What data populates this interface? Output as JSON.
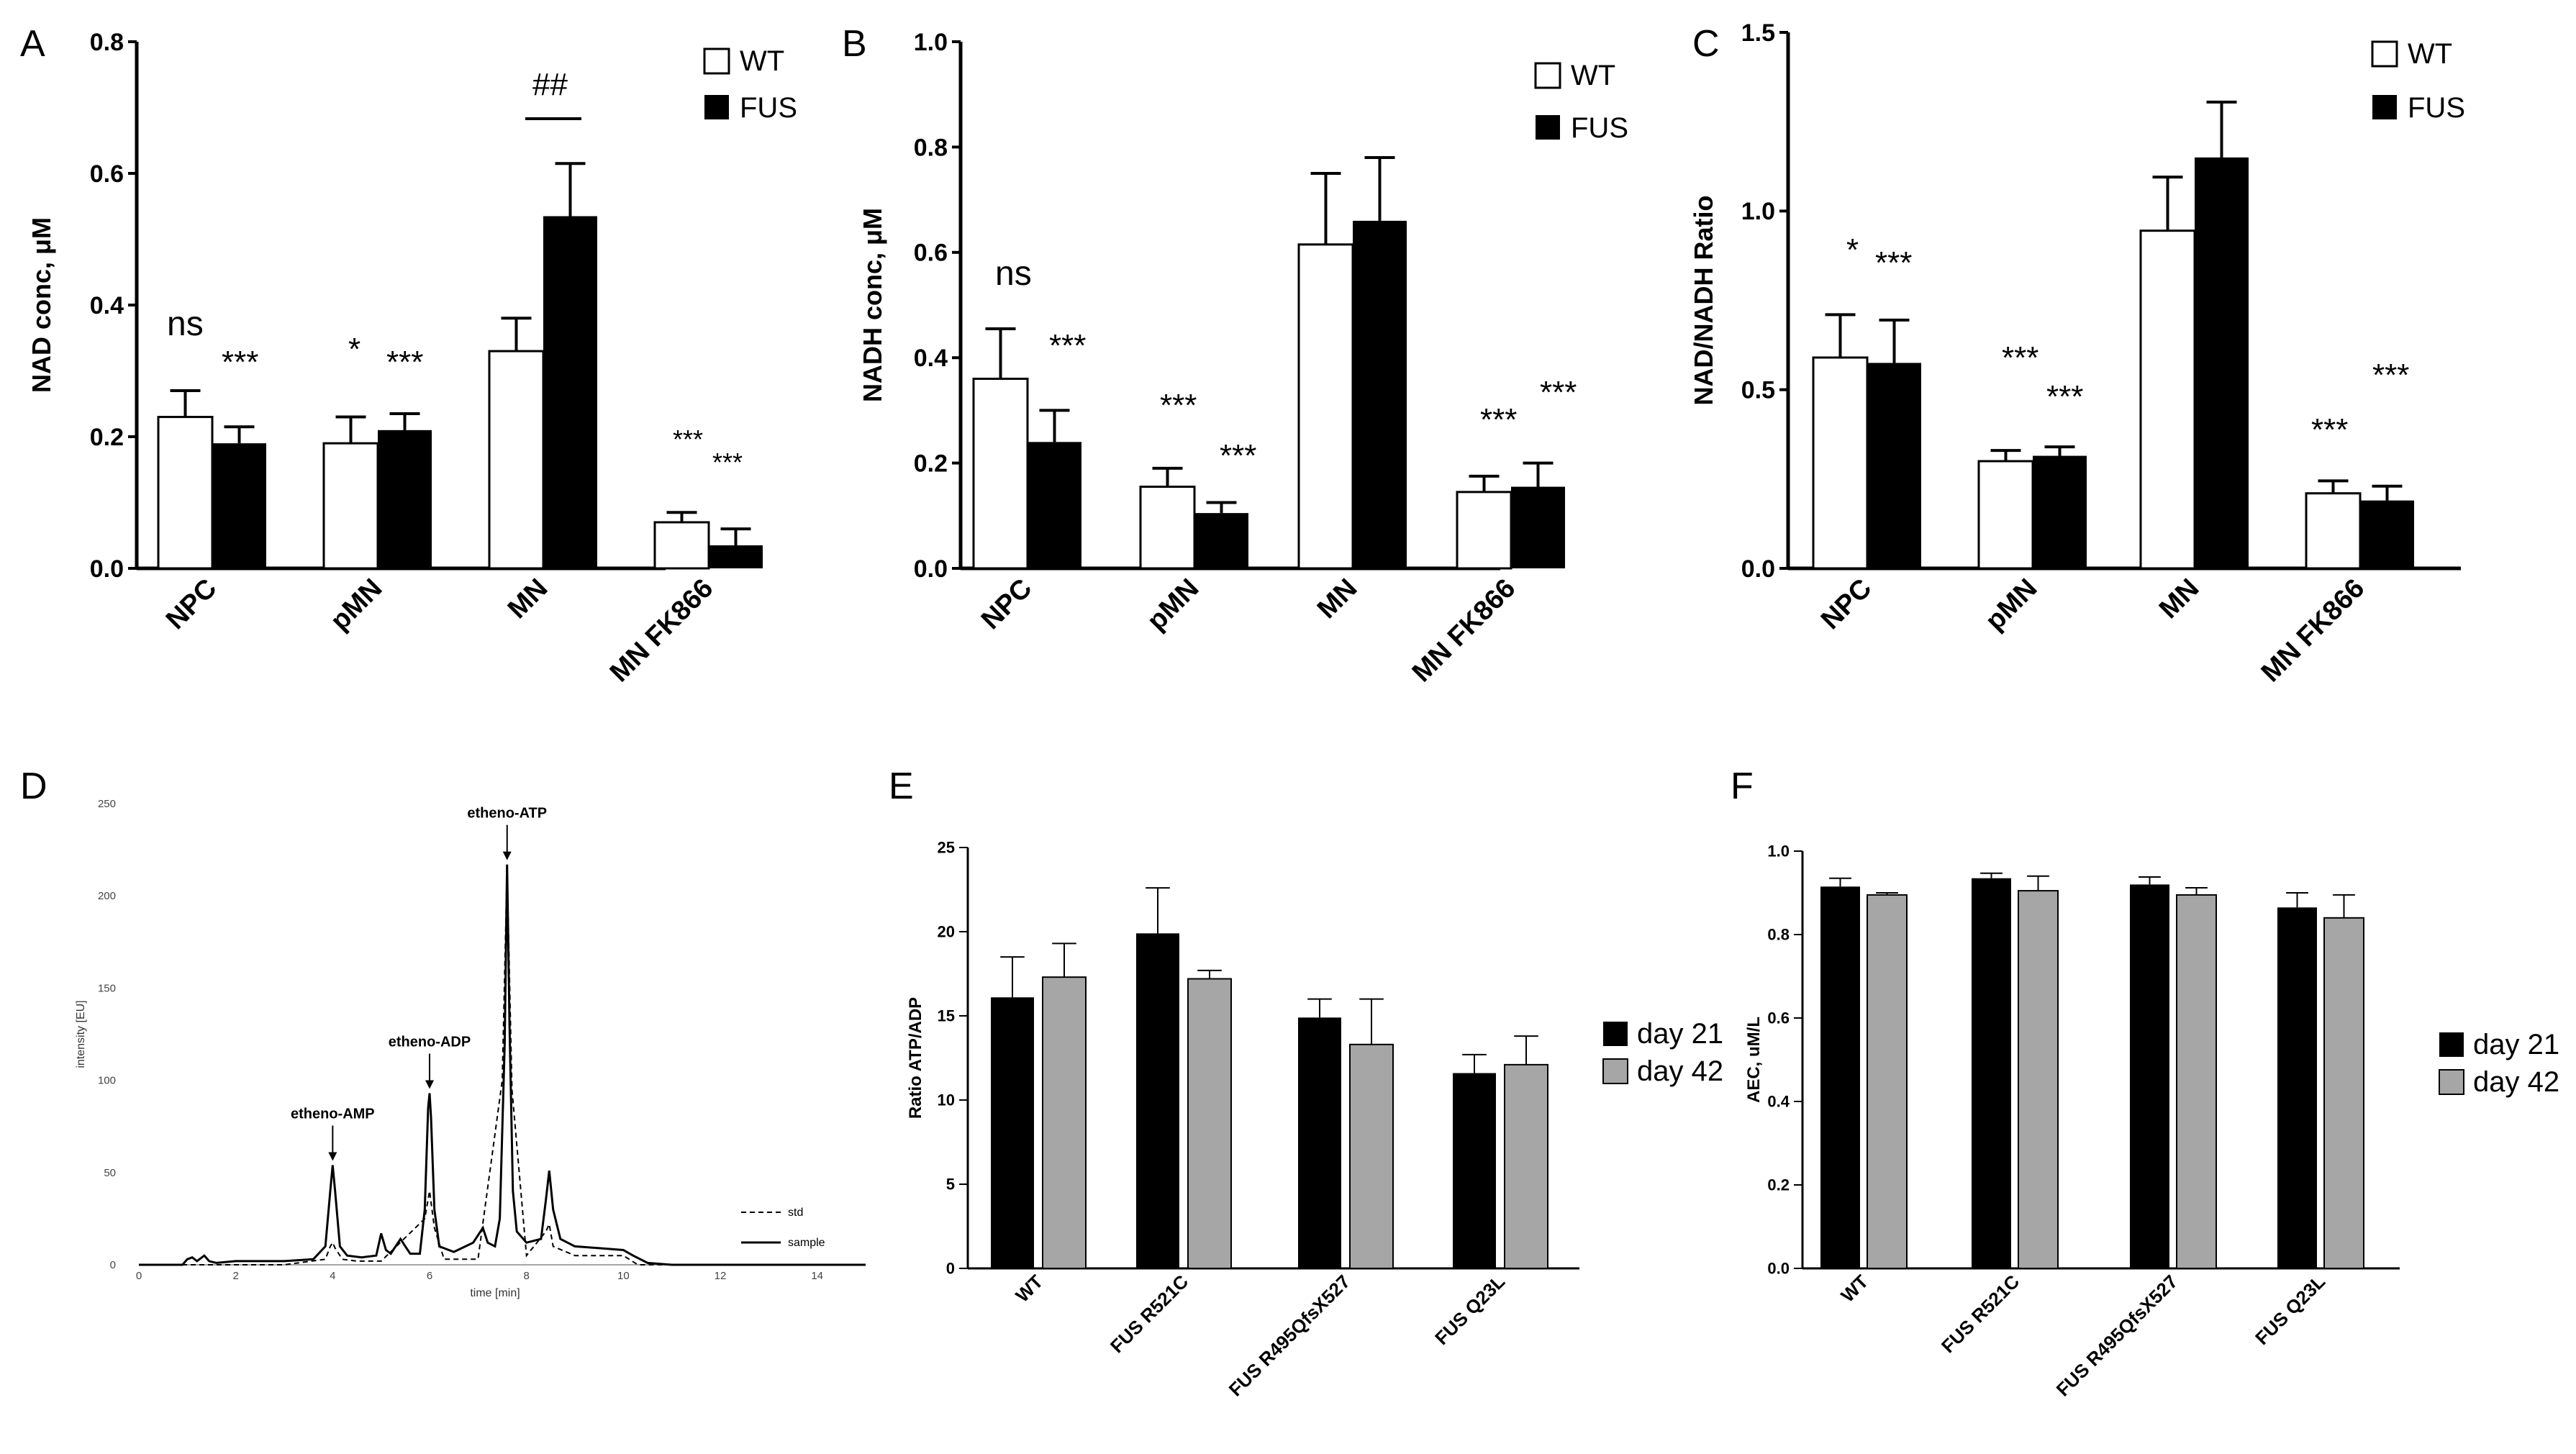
{
  "panel_letters": {
    "A": "A",
    "B": "B",
    "C": "C",
    "D": "D",
    "E": "E",
    "F": "F"
  },
  "colors": {
    "wt": "#ffffff",
    "fus": "#000000",
    "day21": "#000000",
    "day42": "#a6a6a6",
    "line": "#000000"
  },
  "legends": {
    "wt_fus": [
      "WT",
      "FUS"
    ],
    "days": [
      "day 21",
      "day 42"
    ],
    "hplc": [
      "std",
      "sample"
    ]
  },
  "chart_data": [
    {
      "id": "A",
      "type": "bar",
      "ylabel": "NAD conc, μM",
      "ylim": [
        0,
        0.8
      ],
      "yticks": [
        "0.0",
        "0.2",
        "0.4",
        "0.6",
        "0.8"
      ],
      "categories": [
        "NPC",
        "pMN",
        "MN",
        "MN FK866"
      ],
      "series": [
        {
          "name": "WT",
          "values": [
            0.23,
            0.19,
            0.33,
            0.07
          ],
          "errors": [
            0.04,
            0.04,
            0.05,
            0.015
          ]
        },
        {
          "name": "FUS",
          "values": [
            0.19,
            0.21,
            0.535,
            0.035
          ],
          "errors": [
            0.025,
            0.025,
            0.08,
            0.025
          ]
        }
      ],
      "annotations": [
        "ns",
        "***",
        "*",
        "***",
        "##",
        "***",
        "***"
      ]
    },
    {
      "id": "B",
      "type": "bar",
      "ylabel": "NADH conc, μM",
      "ylim": [
        0,
        1.0
      ],
      "yticks": [
        "0.0",
        "0.2",
        "0.4",
        "0.6",
        "0.8",
        "1.0"
      ],
      "categories": [
        "NPC",
        "pMN",
        "MN",
        "MN FK866"
      ],
      "series": [
        {
          "name": "WT",
          "values": [
            0.36,
            0.155,
            0.615,
            0.145
          ],
          "errors": [
            0.095,
            0.035,
            0.135,
            0.03
          ]
        },
        {
          "name": "FUS",
          "values": [
            0.24,
            0.105,
            0.66,
            0.155
          ],
          "errors": [
            0.06,
            0.02,
            0.12,
            0.045
          ]
        }
      ],
      "annotations": [
        "ns",
        "***",
        "***",
        "***",
        "***",
        "***"
      ]
    },
    {
      "id": "C",
      "type": "bar",
      "ylabel": "NAD/NADH Ratio",
      "ylim": [
        0,
        1.5
      ],
      "yticks": [
        "0.0",
        "0.5",
        "1.0",
        "1.5"
      ],
      "categories": [
        "NPC",
        "pMN",
        "MN",
        "MN FK866"
      ],
      "series": [
        {
          "name": "WT",
          "values": [
            0.59,
            0.3,
            0.945,
            0.21
          ],
          "errors": [
            0.12,
            0.03,
            0.15,
            0.035
          ]
        },
        {
          "name": "FUS",
          "values": [
            0.575,
            0.315,
            1.15,
            0.19
          ],
          "errors": [
            0.12,
            0.025,
            0.155,
            0.04
          ]
        }
      ],
      "annotations": [
        "*",
        "***",
        "***",
        "***",
        "***",
        "***"
      ]
    },
    {
      "id": "D",
      "type": "line",
      "xlabel": "time [min]",
      "ylabel": "intensity [EU]",
      "xlim": [
        0,
        15
      ],
      "ylim": [
        0,
        250
      ],
      "xticks": [
        "0",
        "2",
        "4",
        "6",
        "8",
        "10",
        "12",
        "14"
      ],
      "yticks": [
        "0",
        "50",
        "100",
        "150",
        "200",
        "250"
      ],
      "peaks": [
        {
          "label": "etheno-AMP",
          "time": 4.0,
          "sample": 54,
          "std": 12
        },
        {
          "label": "etheno-ADP",
          "time": 6.0,
          "sample": 93,
          "std": 40
        },
        {
          "label": "etheno-ATP",
          "time": 7.6,
          "sample": 217,
          "std": 215
        }
      ],
      "series": [
        {
          "name": "sample",
          "x": [
            0,
            0.9,
            1.0,
            1.1,
            1.2,
            1.35,
            1.45,
            1.6,
            2.0,
            3.0,
            3.6,
            3.85,
            3.95,
            4.0,
            4.05,
            4.15,
            4.3,
            4.6,
            4.9,
            5.0,
            5.1,
            5.2,
            5.4,
            5.5,
            5.6,
            5.8,
            5.9,
            5.97,
            6.0,
            6.03,
            6.1,
            6.2,
            6.5,
            6.9,
            7.1,
            7.2,
            7.35,
            7.45,
            7.55,
            7.6,
            7.65,
            7.72,
            7.8,
            8.0,
            8.3,
            8.4,
            8.47,
            8.55,
            8.7,
            9.0,
            9.5,
            10.0,
            10.2,
            10.5,
            11.0,
            15.0
          ],
          "y": [
            0,
            0,
            3,
            4,
            2,
            5,
            2,
            1,
            2,
            2,
            3,
            10,
            40,
            54,
            40,
            10,
            5,
            4,
            5,
            17,
            8,
            6,
            14,
            10,
            6,
            6,
            30,
            85,
            93,
            80,
            30,
            10,
            7,
            12,
            20,
            12,
            10,
            25,
            120,
            217,
            130,
            40,
            18,
            12,
            14,
            35,
            51,
            30,
            14,
            10,
            9,
            8,
            5,
            1,
            0,
            0
          ]
        },
        {
          "name": "std",
          "x": [
            0,
            3.0,
            3.85,
            3.95,
            4.0,
            4.05,
            4.2,
            4.5,
            5.0,
            5.9,
            6.0,
            6.1,
            6.3,
            7.0,
            7.5,
            7.6,
            7.7,
            8.0,
            8.4,
            8.47,
            8.55,
            9.0,
            10.0,
            10.3,
            15.0
          ],
          "y": [
            0,
            0,
            3,
            10,
            12,
            9,
            3,
            2,
            2,
            25,
            40,
            20,
            3,
            3,
            100,
            215,
            95,
            5,
            18,
            22,
            10,
            5,
            5,
            0,
            0
          ]
        }
      ]
    },
    {
      "id": "E",
      "type": "bar",
      "ylabel": "Ratio ATP/ADP",
      "ylim": [
        0,
        25
      ],
      "yticks": [
        "0",
        "5",
        "10",
        "15",
        "20",
        "25"
      ],
      "categories": [
        "WT",
        "FUS R521C",
        "FUS R495QfsX527",
        "FUS Q23L"
      ],
      "series": [
        {
          "name": "day 21",
          "values": [
            16.1,
            19.9,
            14.9,
            11.6
          ],
          "errors": [
            2.4,
            2.7,
            1.1,
            1.1
          ]
        },
        {
          "name": "day 42",
          "values": [
            17.3,
            17.2,
            13.3,
            12.1
          ],
          "errors": [
            2.0,
            0.5,
            2.7,
            1.7
          ]
        }
      ]
    },
    {
      "id": "F",
      "type": "bar",
      "ylabel": "AEC, uM/L",
      "ylim": [
        0,
        1.0
      ],
      "yticks": [
        "0.0",
        "0.2",
        "0.4",
        "0.6",
        "0.8",
        "1.0"
      ],
      "categories": [
        "WT",
        "FUS R521C",
        "FUS R495QfsX527",
        "FUS Q23L"
      ],
      "series": [
        {
          "name": "day 21",
          "values": [
            0.915,
            0.935,
            0.92,
            0.865
          ],
          "errors": [
            0.02,
            0.012,
            0.018,
            0.035
          ]
        },
        {
          "name": "day 42",
          "values": [
            0.895,
            0.905,
            0.895,
            0.84
          ],
          "errors": [
            0.005,
            0.035,
            0.017,
            0.055
          ]
        }
      ]
    }
  ]
}
